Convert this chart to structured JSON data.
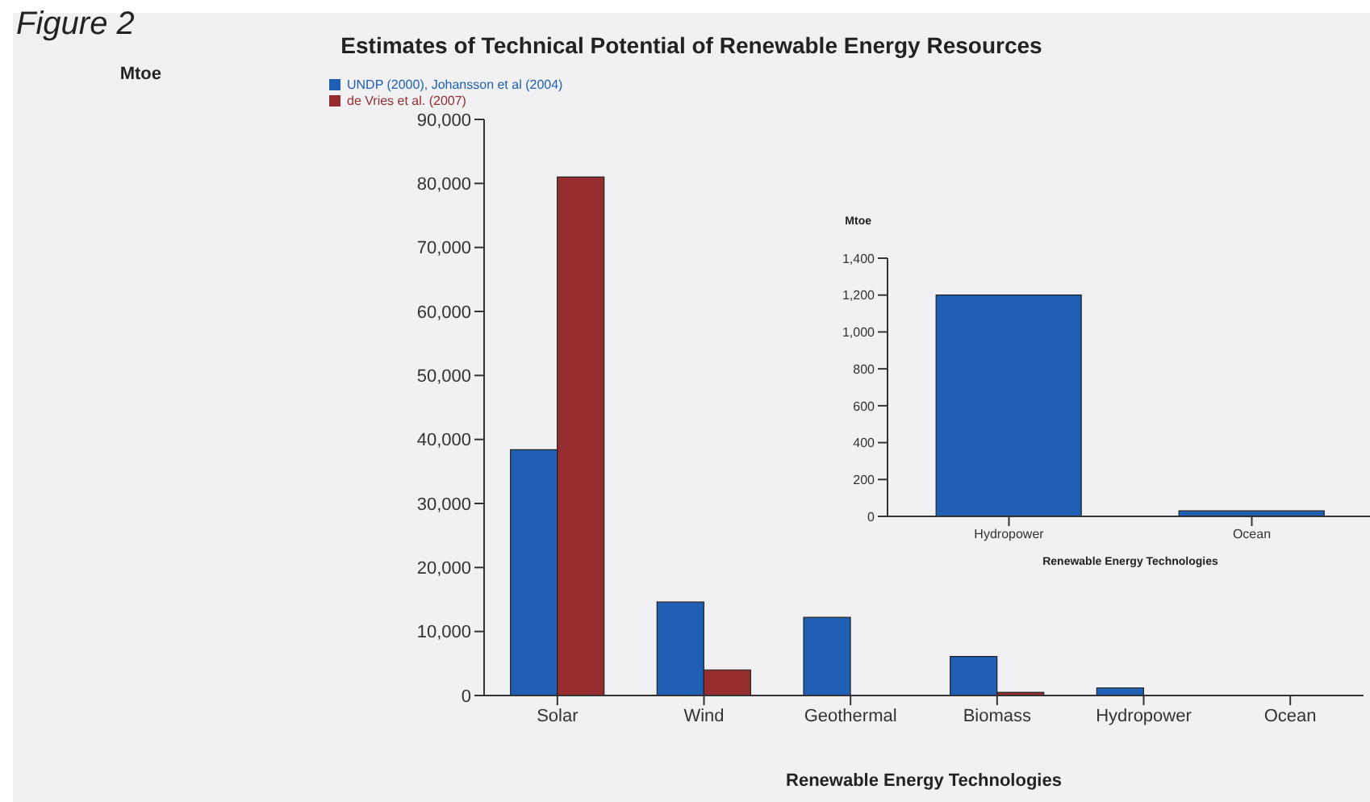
{
  "chart_data": [
    {
      "type": "bar",
      "title": "Estimates of Technical Potential of Renewable Energy Resources",
      "annotations": [
        "Figure 2"
      ],
      "ylabel": "Mtoe",
      "xlabel": "Renewable Energy Technologies",
      "categories": [
        "Solar",
        "Wind",
        "Geothermal",
        "Biomass",
        "Hydropower",
        "Ocean"
      ],
      "series": [
        {
          "name": "UNDP (2000), Johansson et al (2004)",
          "color": "#1f5fb4",
          "values": [
            38400,
            14600,
            12200,
            6100,
            1200,
            0
          ]
        },
        {
          "name": "de Vries et al. (2007)",
          "color": "#962c2e",
          "values": [
            81000,
            4000,
            null,
            500,
            null,
            null
          ]
        }
      ],
      "ylim": [
        0,
        90000
      ],
      "yticks": [
        {
          "value": 0,
          "label": "0"
        },
        {
          "value": 10000,
          "label": "10,000"
        },
        {
          "value": 20000,
          "label": "20,000"
        },
        {
          "value": 30000,
          "label": "30,000"
        },
        {
          "value": 40000,
          "label": "40,000"
        },
        {
          "value": 50000,
          "label": "50,000"
        },
        {
          "value": 60000,
          "label": "60,000"
        },
        {
          "value": 70000,
          "label": "70,000"
        },
        {
          "value": 80000,
          "label": "80,000"
        },
        {
          "value": 90000,
          "label": "90,000"
        }
      ],
      "legend": "top left"
    },
    {
      "type": "bar",
      "ylabel": "Mtoe",
      "xlabel": "Renewable Energy Technologies",
      "categories": [
        "Hydropower",
        "Ocean"
      ],
      "series": [
        {
          "color": "#1f5fb4",
          "values": [
            1200,
            30
          ]
        }
      ],
      "ylim": [
        0,
        1400
      ],
      "yticks": [
        {
          "value": 0,
          "label": "0"
        },
        {
          "value": 200,
          "label": "200"
        },
        {
          "value": 400,
          "label": "400"
        },
        {
          "value": 600,
          "label": "600"
        },
        {
          "value": 800,
          "label": "800"
        },
        {
          "value": 1000,
          "label": "1,000"
        },
        {
          "value": 1200,
          "label": "1,200"
        },
        {
          "value": 1400,
          "label": "1,400"
        }
      ]
    }
  ]
}
